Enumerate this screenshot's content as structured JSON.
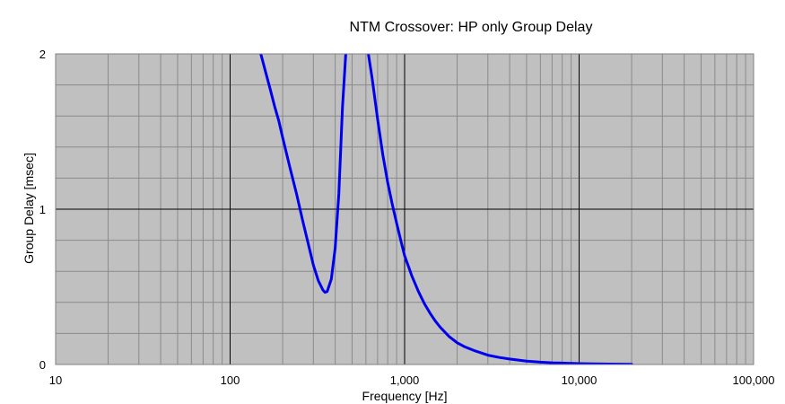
{
  "chart_data": {
    "type": "line",
    "title": "NTM Crossover: HP only Group Delay",
    "xlabel": "Frequency [Hz]",
    "ylabel": "Group Delay [msec]",
    "x_scale": "log",
    "xlim": [
      10,
      100000
    ],
    "ylim": [
      0,
      2
    ],
    "x_ticks": [
      {
        "value": 10,
        "label": "10"
      },
      {
        "value": 100,
        "label": "100"
      },
      {
        "value": 1000,
        "label": "1,000"
      },
      {
        "value": 10000,
        "label": "10,000"
      },
      {
        "value": 100000,
        "label": "100,000"
      }
    ],
    "y_ticks": [
      {
        "value": 0,
        "label": "0"
      },
      {
        "value": 1,
        "label": "1"
      },
      {
        "value": 2,
        "label": "2"
      }
    ],
    "grid": true,
    "background_color": "#c0c0c0",
    "line_color": "#0000ee",
    "series": [
      {
        "segments": [
          [
            [
              150,
              2.0
            ],
            [
              160,
              1.88
            ],
            [
              170,
              1.77
            ],
            [
              180,
              1.66
            ],
            [
              190,
              1.57
            ],
            [
              200,
              1.46
            ],
            [
              220,
              1.27
            ],
            [
              240,
              1.1
            ],
            [
              260,
              0.93
            ],
            [
              280,
              0.78
            ],
            [
              300,
              0.64
            ],
            [
              320,
              0.54
            ],
            [
              340,
              0.48
            ],
            [
              350,
              0.465
            ],
            [
              360,
              0.47
            ],
            [
              380,
              0.55
            ],
            [
              400,
              0.75
            ],
            [
              420,
              1.1
            ],
            [
              440,
              1.65
            ],
            [
              460,
              2.0
            ]
          ],
          [
            [
              620,
              2.0
            ],
            [
              650,
              1.85
            ],
            [
              700,
              1.58
            ],
            [
              750,
              1.35
            ],
            [
              800,
              1.17
            ],
            [
              850,
              1.03
            ],
            [
              900,
              0.91
            ],
            [
              950,
              0.8
            ],
            [
              1000,
              0.7
            ],
            [
              1100,
              0.57
            ],
            [
              1200,
              0.47
            ],
            [
              1300,
              0.39
            ],
            [
              1400,
              0.33
            ],
            [
              1500,
              0.28
            ],
            [
              1600,
              0.24
            ],
            [
              1800,
              0.18
            ],
            [
              2000,
              0.14
            ],
            [
              2200,
              0.115
            ],
            [
              2500,
              0.09
            ],
            [
              3000,
              0.06
            ],
            [
              3500,
              0.045
            ],
            [
              4000,
              0.035
            ],
            [
              5000,
              0.022
            ],
            [
              6000,
              0.015
            ],
            [
              7000,
              0.011
            ],
            [
              8000,
              0.009
            ],
            [
              10000,
              0.006
            ],
            [
              12000,
              0.004
            ],
            [
              15000,
              0.003
            ],
            [
              20000,
              0.002
            ]
          ]
        ]
      }
    ]
  }
}
